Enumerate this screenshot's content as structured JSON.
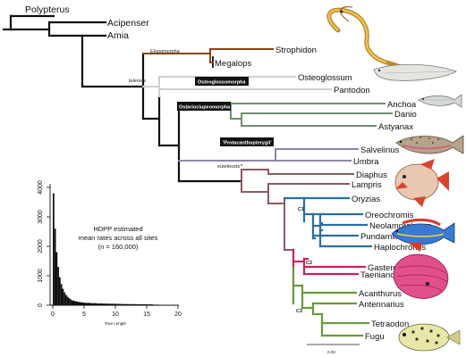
{
  "tree": {
    "taxa": [
      "Polypterus",
      "Acipenser",
      "Amia",
      "Strophidon",
      "Megalops",
      "Osteoglossum",
      "Pantodon",
      "Anchoa",
      "Danio",
      "Astyanax",
      "Salvelinus",
      "Umbra",
      "Diaphus",
      "Lampris",
      "Oryzias",
      "Oreochromis",
      "Neolamprologus",
      "Pundamilia",
      "Haplochromis",
      "Gasterosteus",
      "Taenianotus",
      "Acanthurus",
      "Antennarius",
      "Tetraodon",
      "Fugu"
    ],
    "clade_labels": {
      "teleosts": "teleosts",
      "elopomorpha": "Elopomorpha",
      "osteoglossomorpha": "Osteoglossomorpha",
      "ostarioclupeomorpha": "Ostarioclupeomorpha",
      "protacanthopterygii": "'Protacanthopterygii'",
      "euteleosts": "euteleosts",
      "c1": "C1",
      "c2": "C2",
      "c3": "C3"
    },
    "scale_bar_label": "0.03",
    "colors": {
      "backbone": "#111111",
      "elopomorpha": "#8B4513",
      "osteoglossomorpha": "#c8c8c8",
      "ostarioclupeomorpha": "#6f8f6f",
      "protacanthopterygii": "#8888aa",
      "euteleost": "#8a5a60",
      "c1": "#2a6fa0",
      "c2": "#d0205a",
      "c3": "#6a9a3a"
    }
  },
  "inset_histogram": {
    "annotation_line1": "HDPP estimated",
    "annotation_line2": "mean rates across all sites",
    "annotation_line3": "(n = 160,000)",
    "xlabel": "Tree Length",
    "x_ticks": [
      "0",
      "5",
      "10",
      "15",
      "20"
    ],
    "y_ticks": [
      "0",
      "1000",
      "2000",
      "3000",
      "4000"
    ]
  },
  "chart_data": {
    "type": "bar",
    "xlabel": "Tree Length",
    "ylabel": "",
    "xlim": [
      0,
      20
    ],
    "ylim": [
      0,
      4000
    ],
    "x": [
      0.25,
      0.5,
      0.75,
      1.0,
      1.25,
      1.5,
      1.75,
      2.0,
      2.25,
      2.5,
      2.75,
      3.0,
      3.5,
      4.0,
      4.5,
      5.0,
      6.0,
      7.0,
      8.0,
      9.0,
      10.0,
      11.0,
      12.0,
      13.0,
      14.0,
      15.0,
      16.0,
      17.0
    ],
    "values": [
      3800,
      2600,
      1800,
      1300,
      950,
      720,
      560,
      440,
      350,
      290,
      240,
      200,
      160,
      130,
      110,
      95,
      80,
      70,
      60,
      55,
      50,
      45,
      40,
      38,
      35,
      32,
      30,
      20
    ]
  },
  "icons": [
    "eel-illustration",
    "knifefish-illustration",
    "anchovy-illustration",
    "trout-illustration",
    "opah-illustration",
    "cichlid-illustration",
    "scorpionfish-illustration",
    "pufferfish-illustration"
  ]
}
